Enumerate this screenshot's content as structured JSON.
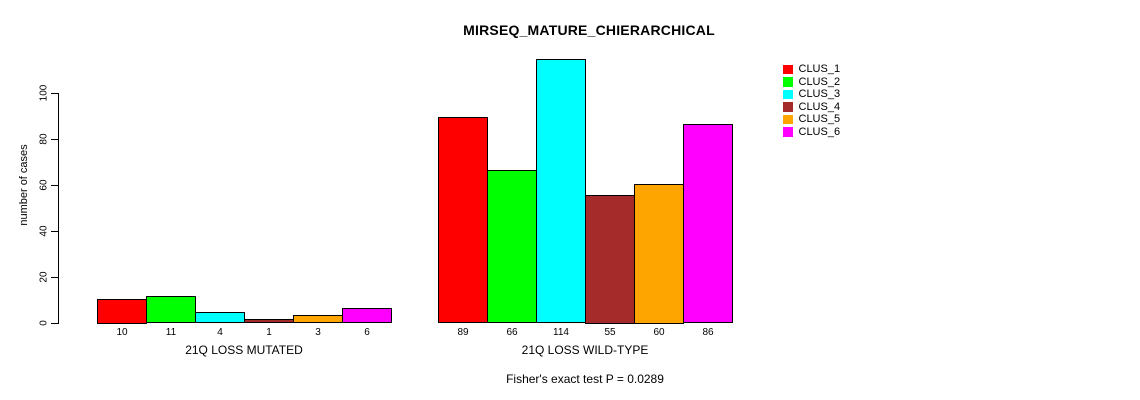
{
  "chart_data": {
    "type": "bar",
    "title": "MIRSEQ_MATURE_CHIERARCHICAL",
    "xlabel": "",
    "ylabel": "number of cases",
    "ylim": [
      0,
      115
    ],
    "yticks": [
      0,
      20,
      40,
      60,
      80,
      100
    ],
    "grid": false,
    "legend_position": "top-right",
    "bar_value_labels_shown": true,
    "categories": [
      "21Q LOSS MUTATED",
      "21Q LOSS WILD-TYPE"
    ],
    "series": [
      {
        "name": "CLUS_1",
        "color": "#FF0000",
        "values": [
          10,
          89
        ]
      },
      {
        "name": "CLUS_2",
        "color": "#00FF00",
        "values": [
          11,
          66
        ]
      },
      {
        "name": "CLUS_3",
        "color": "#00FFFF",
        "values": [
          4,
          114
        ]
      },
      {
        "name": "CLUS_4",
        "color": "#A52A2A",
        "values": [
          1,
          55
        ]
      },
      {
        "name": "CLUS_5",
        "color": "#FFA500",
        "values": [
          3,
          60
        ]
      },
      {
        "name": "CLUS_6",
        "color": "#FF00FF",
        "values": [
          6,
          86
        ]
      }
    ],
    "annotation": "Fisher's exact test P = 0.0289"
  }
}
